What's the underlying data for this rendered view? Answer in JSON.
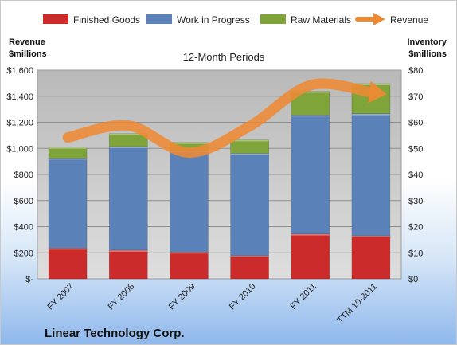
{
  "chart_data": {
    "type": "bar",
    "title": "12-Month Periods",
    "categories": [
      "FY 2007",
      "FY 2008",
      "FY 2009",
      "FY 2010",
      "FY 2011",
      "TTM 10-2011"
    ],
    "series": [
      {
        "name": "Finished Goods",
        "axis": "right",
        "values": [
          11.8,
          11.0,
          10.3,
          8.9,
          17.2,
          16.5
        ]
      },
      {
        "name": "Work in Progress",
        "axis": "right",
        "values": [
          34.5,
          39.7,
          38.9,
          39.2,
          45.6,
          46.8
        ]
      },
      {
        "name": "Raw Materials",
        "axis": "right",
        "values": [
          4.2,
          5.0,
          3.1,
          5.2,
          9.1,
          11.5
        ]
      },
      {
        "name": "Revenue",
        "type": "line",
        "axis": "left",
        "values": [
          1083,
          1175,
          968,
          1170,
          1484,
          1430
        ]
      }
    ],
    "left_axis": {
      "label_line1": "Revenue",
      "label_line2": "$millions",
      "ylim": [
        0,
        1600
      ],
      "ticks": [
        "$-",
        "$200",
        "$400",
        "$600",
        "$800",
        "$1,000",
        "$1,200",
        "$1,400",
        "$1,600"
      ]
    },
    "right_axis": {
      "label_line1": "Inventory",
      "label_line2": "$millions",
      "ylim": [
        0,
        80
      ],
      "ticks": [
        "$0",
        "$10",
        "$20",
        "$30",
        "$40",
        "$50",
        "$60",
        "$70",
        "$80"
      ]
    },
    "grid": true,
    "legend_position": "top",
    "company": "Linear Technology Corp.",
    "colors": {
      "finished_goods": "#cc2b2b",
      "work_in_progress": "#5b82b8",
      "raw_materials": "#7ea43a",
      "revenue": "#ee8a34",
      "plot_background": "#c9c9c9"
    }
  }
}
